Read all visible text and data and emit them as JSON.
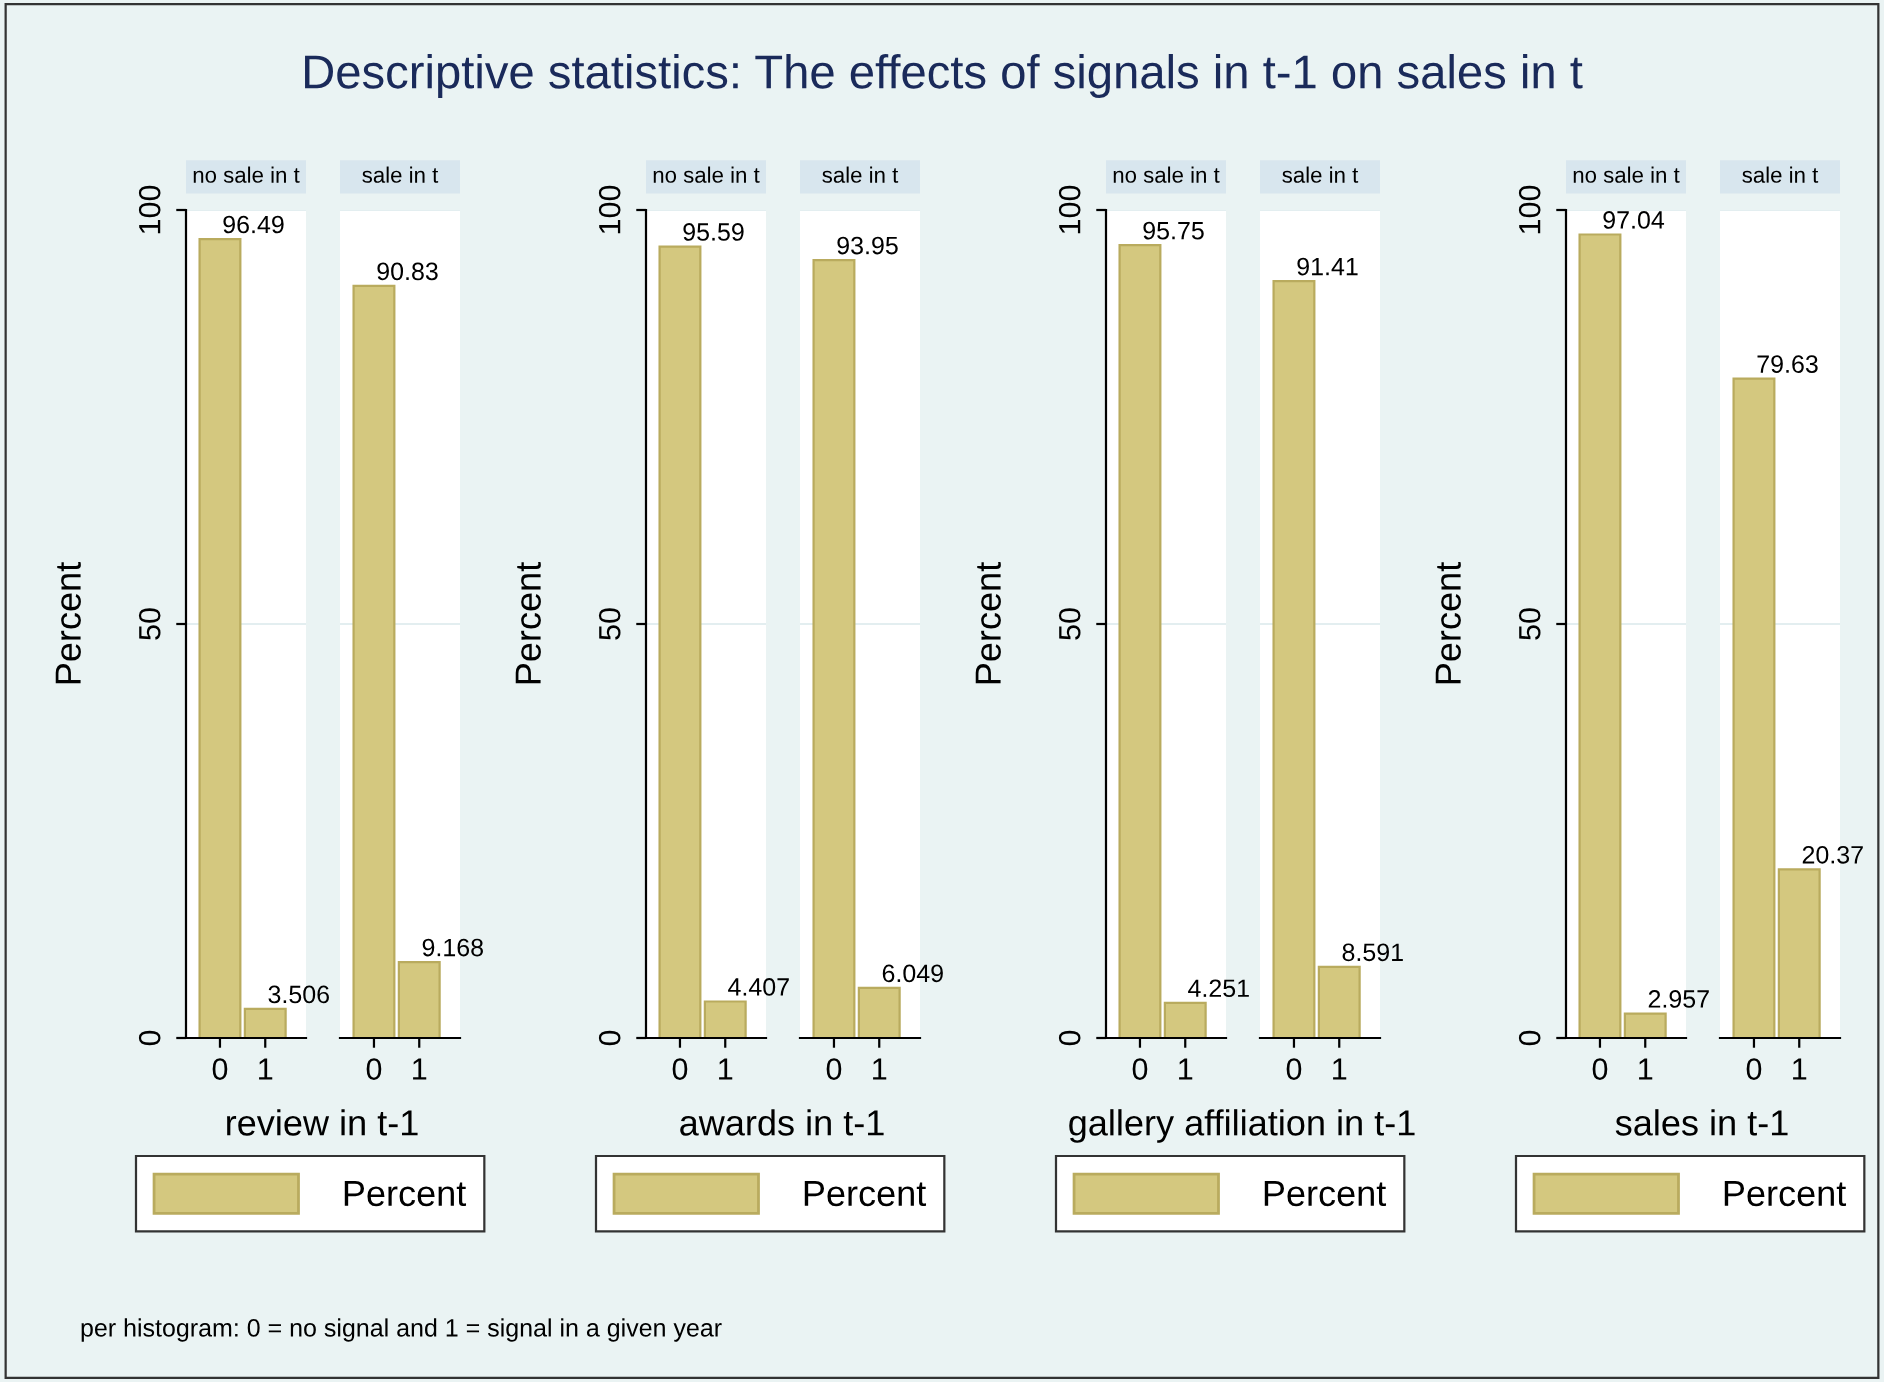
{
  "chart_data": [
    {
      "type": "bar",
      "title": "Descriptive statistics: The effects of signals in t-1 on sales in t",
      "subtitle": "no sale in t",
      "xlabel": "review in t-1",
      "ylabel": "Percent",
      "categories": [
        "0",
        "1"
      ],
      "series": [
        {
          "name": "Percent",
          "color": "#d4c87f",
          "values": [
            96.49,
            3.506
          ]
        }
      ],
      "data_labels": true,
      "ylim": [
        0,
        100
      ],
      "yticks": [
        0,
        50,
        100
      ],
      "grid": "y",
      "legend": "bottom",
      "annotations": [
        "per histogram: 0 = no signal and 1 = signal in a given year"
      ]
    },
    {
      "type": "bar",
      "subtitle": "sale in t",
      "categories": [
        "0",
        "1"
      ],
      "series": [
        {
          "color": "#d4c87f",
          "values": [
            90.83,
            9.168
          ]
        }
      ],
      "data_labels": true,
      "ylim": [
        0,
        100
      ],
      "yticks": [
        0,
        50,
        100
      ],
      "grid": "y",
      "tick_labels": "x"
    },
    {
      "type": "bar",
      "subtitle": "no sale in t",
      "xlabel": "awards in t-1",
      "ylabel": "Percent",
      "categories": [
        "0",
        "1"
      ],
      "series": [
        {
          "name": "Percent",
          "color": "#d4c87f",
          "values": [
            95.59,
            4.407
          ]
        }
      ],
      "data_labels": true,
      "ylim": [
        0,
        100
      ],
      "yticks": [
        0,
        50,
        100
      ],
      "grid": "y",
      "legend": "bottom"
    },
    {
      "type": "bar",
      "subtitle": "sale in t",
      "categories": [
        "0",
        "1"
      ],
      "series": [
        {
          "color": "#d4c87f",
          "values": [
            93.95,
            6.049
          ]
        }
      ],
      "data_labels": true,
      "ylim": [
        0,
        100
      ],
      "yticks": [
        0,
        50,
        100
      ],
      "grid": "y",
      "tick_labels": "x"
    },
    {
      "type": "bar",
      "subtitle": "no sale in t",
      "xlabel": "gallery affiliation in t-1",
      "ylabel": "Percent",
      "categories": [
        "0",
        "1"
      ],
      "series": [
        {
          "name": "Percent",
          "color": "#d4c87f",
          "values": [
            95.75,
            4.251
          ]
        }
      ],
      "data_labels": true,
      "ylim": [
        0,
        100
      ],
      "yticks": [
        0,
        50,
        100
      ],
      "grid": "y",
      "legend": "bottom"
    },
    {
      "type": "bar",
      "subtitle": "sale in t",
      "categories": [
        "0",
        "1"
      ],
      "series": [
        {
          "color": "#d4c87f",
          "values": [
            91.41,
            8.591
          ]
        }
      ],
      "data_labels": true,
      "ylim": [
        0,
        100
      ],
      "yticks": [
        0,
        50,
        100
      ],
      "grid": "y",
      "tick_labels": "x"
    },
    {
      "type": "bar",
      "subtitle": "no sale in t",
      "xlabel": "sales in t-1",
      "ylabel": "Percent",
      "categories": [
        "0",
        "1"
      ],
      "series": [
        {
          "name": "Percent",
          "color": "#d4c87f",
          "values": [
            97.04,
            2.957
          ]
        }
      ],
      "data_labels": true,
      "ylim": [
        0,
        100
      ],
      "yticks": [
        0,
        50,
        100
      ],
      "grid": "y",
      "legend": "bottom"
    },
    {
      "type": "bar",
      "subtitle": "sale in t",
      "categories": [
        "0",
        "1"
      ],
      "series": [
        {
          "color": "#d4c87f",
          "values": [
            79.63,
            20.37
          ]
        }
      ],
      "data_labels": true,
      "ylim": [
        0,
        100
      ],
      "yticks": [
        0,
        50,
        100
      ],
      "grid": "y",
      "tick_labels": "x"
    }
  ]
}
